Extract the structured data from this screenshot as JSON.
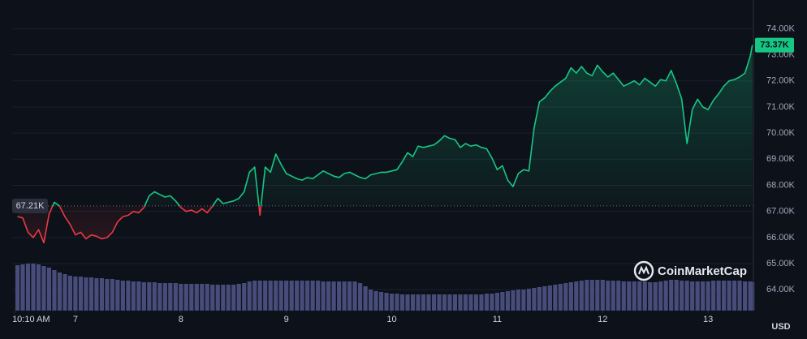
{
  "chart_data": {
    "type": "line",
    "currency": "USD",
    "watermark": "CoinMarketCap",
    "up_color": "#16c784",
    "down_color": "#ea3943",
    "volume_color": "#474c7a",
    "grid": true,
    "xlim": [
      6.4,
      13.43
    ],
    "xticks": [
      {
        "value": 6.4236,
        "label": "10:10 AM"
      },
      7,
      8,
      9,
      10,
      11,
      12,
      13
    ],
    "ylim": [
      63200,
      74850
    ],
    "yticks": [
      {
        "value": 64000,
        "label": "64.00K"
      },
      {
        "value": 65000,
        "label": "65.00K"
      },
      {
        "value": 66000,
        "label": "66.00K"
      },
      {
        "value": 67000,
        "label": "67.00K"
      },
      {
        "value": 68000,
        "label": "68.00K"
      },
      {
        "value": 69000,
        "label": "69.00K"
      },
      {
        "value": 70000,
        "label": "70.00K"
      },
      {
        "value": 71000,
        "label": "71.00K"
      },
      {
        "value": 72000,
        "label": "72.00K"
      },
      {
        "value": 73000,
        "label": "73.00K"
      },
      {
        "value": 74000,
        "label": "74.00K"
      }
    ],
    "baseline": {
      "value": 67210,
      "label": "67.21K"
    },
    "last_price": {
      "value": 73370,
      "label": "73.37K"
    },
    "x": [
      6.45,
      6.5,
      6.55,
      6.6,
      6.65,
      6.7,
      6.75,
      6.8,
      6.85,
      6.9,
      6.95,
      7.0,
      7.05,
      7.1,
      7.15,
      7.2,
      7.25,
      7.3,
      7.35,
      7.4,
      7.45,
      7.5,
      7.55,
      7.6,
      7.65,
      7.7,
      7.75,
      7.8,
      7.85,
      7.9,
      7.95,
      8.0,
      8.05,
      8.1,
      8.15,
      8.2,
      8.25,
      8.3,
      8.35,
      8.4,
      8.45,
      8.5,
      8.55,
      8.6,
      8.65,
      8.7,
      8.75,
      8.8,
      8.85,
      8.9,
      8.95,
      9.0,
      9.05,
      9.1,
      9.15,
      9.2,
      9.25,
      9.3,
      9.35,
      9.4,
      9.45,
      9.5,
      9.55,
      9.6,
      9.65,
      9.7,
      9.75,
      9.8,
      9.85,
      9.9,
      9.95,
      10.0,
      10.05,
      10.1,
      10.15,
      10.2,
      10.25,
      10.3,
      10.35,
      10.4,
      10.45,
      10.5,
      10.55,
      10.6,
      10.65,
      10.7,
      10.75,
      10.8,
      10.85,
      10.9,
      10.95,
      11.0,
      11.05,
      11.1,
      11.15,
      11.2,
      11.25,
      11.3,
      11.35,
      11.4,
      11.45,
      11.5,
      11.55,
      11.6,
      11.65,
      11.7,
      11.75,
      11.8,
      11.85,
      11.9,
      11.95,
      12.0,
      12.05,
      12.1,
      12.15,
      12.2,
      12.25,
      12.3,
      12.35,
      12.4,
      12.45,
      12.5,
      12.55,
      12.6,
      12.65,
      12.7,
      12.75,
      12.8,
      12.85,
      12.9,
      12.95,
      13.0,
      13.05,
      13.1,
      13.15,
      13.2,
      13.25,
      13.3,
      13.35,
      13.4,
      13.42
    ],
    "values": [
      66800,
      66750,
      66200,
      66000,
      66300,
      65800,
      66900,
      67350,
      67200,
      66800,
      66500,
      66100,
      66200,
      65950,
      66100,
      66050,
      65950,
      66000,
      66200,
      66600,
      66800,
      66850,
      67000,
      66950,
      67150,
      67600,
      67750,
      67650,
      67550,
      67600,
      67400,
      67150,
      67000,
      67050,
      66950,
      67100,
      66950,
      67200,
      67500,
      67300,
      67350,
      67400,
      67500,
      67750,
      68500,
      68700,
      66850,
      68700,
      68500,
      69200,
      68800,
      68450,
      68350,
      68250,
      68200,
      68300,
      68250,
      68400,
      68550,
      68450,
      68350,
      68300,
      68450,
      68500,
      68400,
      68300,
      68250,
      68400,
      68450,
      68500,
      68500,
      68550,
      68600,
      68900,
      69250,
      69100,
      69500,
      69450,
      69500,
      69550,
      69700,
      69900,
      69800,
      69750,
      69450,
      69600,
      69500,
      69550,
      69450,
      69400,
      69050,
      68600,
      68750,
      68200,
      67950,
      68450,
      68600,
      68550,
      70200,
      71200,
      71350,
      71600,
      71800,
      71950,
      72100,
      72500,
      72300,
      72550,
      72300,
      72200,
      72600,
      72350,
      72150,
      72300,
      72050,
      71800,
      71900,
      72000,
      71850,
      72100,
      71950,
      71800,
      72050,
      72000,
      72400,
      71900,
      71300,
      69600,
      70900,
      71300,
      71000,
      70900,
      71250,
      71500,
      71800,
      72000,
      72050,
      72150,
      72300,
      72950,
      73370
    ],
    "volume": [
      56,
      57,
      58,
      58,
      57,
      55,
      53,
      50,
      47,
      45,
      43,
      42,
      42,
      41,
      41,
      40,
      40,
      39,
      39,
      38,
      37,
      37,
      36,
      36,
      35,
      35,
      35,
      34,
      34,
      34,
      34,
      33,
      33,
      33,
      33,
      33,
      33,
      32,
      32,
      32,
      32,
      32,
      33,
      34,
      36,
      37,
      37,
      37,
      37,
      37,
      37,
      37,
      37,
      37,
      37,
      37,
      37,
      37,
      36,
      36,
      36,
      36,
      36,
      36,
      36,
      34,
      30,
      26,
      24,
      23,
      22,
      21,
      21,
      20,
      20,
      20,
      20,
      20,
      20,
      20,
      20,
      20,
      20,
      20,
      20,
      20,
      20,
      20,
      20,
      21,
      21,
      22,
      23,
      24,
      25,
      26,
      26,
      27,
      28,
      29,
      30,
      31,
      32,
      33,
      34,
      35,
      36,
      37,
      38,
      38,
      38,
      38,
      37,
      37,
      37,
      36,
      36,
      36,
      36,
      36,
      35,
      35,
      36,
      37,
      38,
      38,
      37,
      37,
      36,
      36,
      36,
      36,
      37,
      37,
      37,
      37,
      37,
      37,
      36,
      36,
      35
    ]
  }
}
